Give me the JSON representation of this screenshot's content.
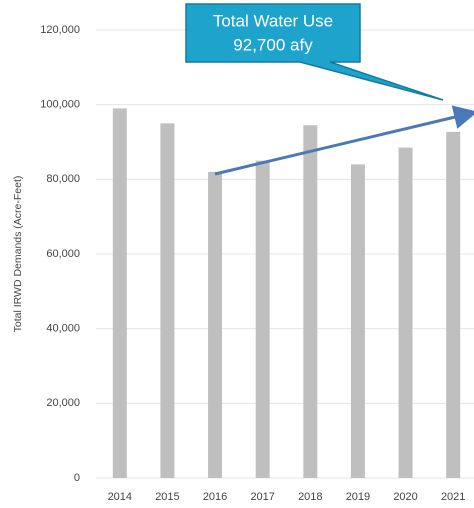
{
  "chart_data": {
    "type": "bar",
    "y_label": "Total IRWD Demands (Acre-Feet)",
    "annotation": [
      "Total Water Use",
      "92,700 afy"
    ],
    "categories": [
      "2014",
      "2015",
      "2016",
      "2017",
      "2018",
      "2019",
      "2020",
      "2021"
    ],
    "values": [
      99000,
      95000,
      82000,
      85000,
      94500,
      84000,
      88500,
      92700
    ],
    "color": "#bfbfbf",
    "ylim": [
      0,
      120000
    ],
    "yticks": [
      {
        "value": 0,
        "label": "0"
      },
      {
        "value": 20000,
        "label": "20,000"
      },
      {
        "value": 40000,
        "label": "40,000"
      },
      {
        "value": 60000,
        "label": "60,000"
      },
      {
        "value": 80000,
        "label": "80,000"
      },
      {
        "value": 100000,
        "label": "100,000"
      },
      {
        "value": 120000,
        "label": "120,000"
      }
    ],
    "grid": true
  }
}
